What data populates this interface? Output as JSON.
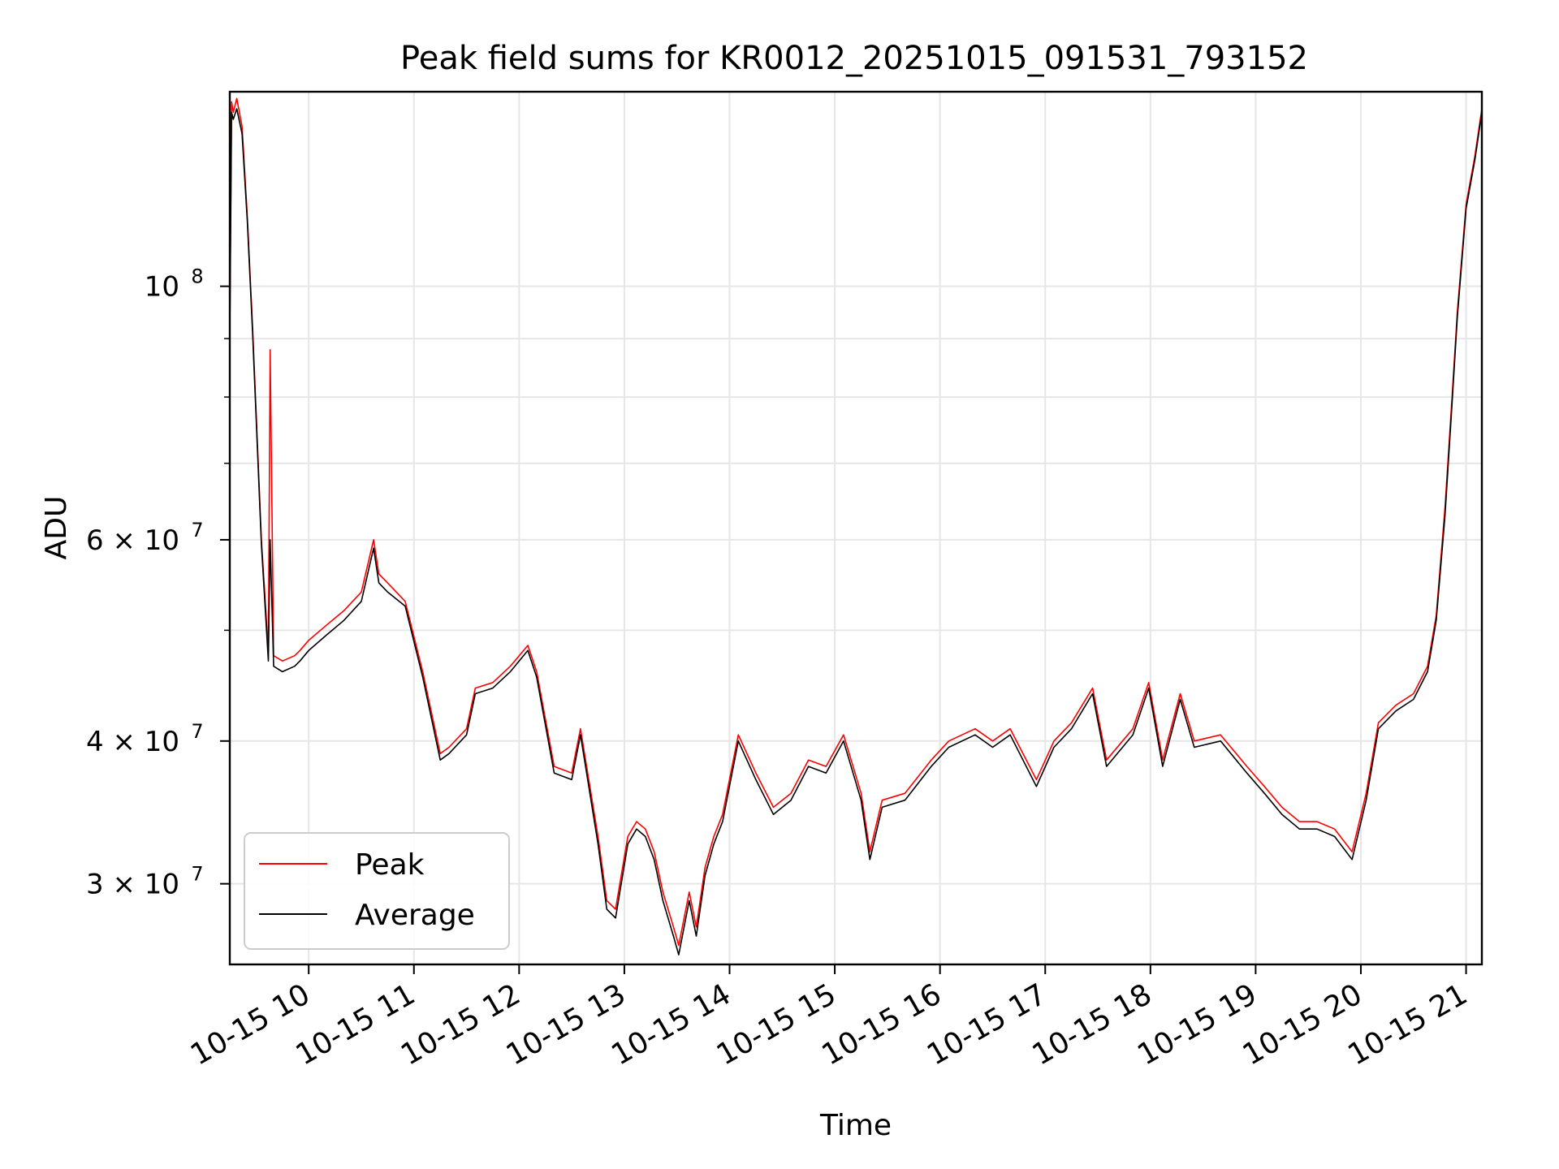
{
  "chart_data": {
    "type": "line",
    "title": "Peak field sums for KR0012_20251015_091531_793152",
    "xlabel": "Time",
    "ylabel": "ADU",
    "yscale": "log",
    "ylim": [
      25500000,
      148000000
    ],
    "xlim": [
      "2025-10-15 09:15",
      "2025-10-15 21:09"
    ],
    "grid": true,
    "legend": "lower-left",
    "x_ticks": [
      {
        "x": "2025-10-15 10:00",
        "label": "10-15 10"
      },
      {
        "x": "2025-10-15 11:00",
        "label": "10-15 11"
      },
      {
        "x": "2025-10-15 12:00",
        "label": "10-15 12"
      },
      {
        "x": "2025-10-15 13:00",
        "label": "10-15 13"
      },
      {
        "x": "2025-10-15 14:00",
        "label": "10-15 14"
      },
      {
        "x": "2025-10-15 15:00",
        "label": "10-15 15"
      },
      {
        "x": "2025-10-15 16:00",
        "label": "10-15 16"
      },
      {
        "x": "2025-10-15 17:00",
        "label": "10-15 17"
      },
      {
        "x": "2025-10-15 18:00",
        "label": "10-15 18"
      },
      {
        "x": "2025-10-15 19:00",
        "label": "10-15 19"
      },
      {
        "x": "2025-10-15 20:00",
        "label": "10-15 20"
      },
      {
        "x": "2025-10-15 21:00",
        "label": "10-15 21"
      }
    ],
    "y_major_ticks": [
      {
        "value": 100000000,
        "base": "10",
        "exp": "8"
      },
      {
        "value": 60000000,
        "base": "6 × 10",
        "exp": "7"
      },
      {
        "value": 40000000,
        "base": "4 × 10",
        "exp": "7"
      },
      {
        "value": 30000000,
        "base": "3 × 10",
        "exp": "7"
      }
    ],
    "y_minor_ticks": [
      90000000,
      80000000,
      70000000,
      50000000
    ],
    "series": [
      {
        "name": "Peak",
        "color": "#ff0000"
      },
      {
        "name": "Average",
        "color": "#000000"
      }
    ],
    "x": [
      "2025-10-15 09:15",
      "2025-10-15 09:16",
      "2025-10-15 09:17",
      "2025-10-15 09:19",
      "2025-10-15 09:22",
      "2025-10-15 09:25",
      "2025-10-15 09:28",
      "2025-10-15 09:33",
      "2025-10-15 09:37",
      "2025-10-15 09:38",
      "2025-10-15 09:40",
      "2025-10-15 09:45",
      "2025-10-15 09:52",
      "2025-10-15 09:55",
      "2025-10-15 10:00",
      "2025-10-15 10:10",
      "2025-10-15 10:20",
      "2025-10-15 10:30",
      "2025-10-15 10:37",
      "2025-10-15 10:40",
      "2025-10-15 10:45",
      "2025-10-15 10:55",
      "2025-10-15 11:05",
      "2025-10-15 11:15",
      "2025-10-15 11:20",
      "2025-10-15 11:30",
      "2025-10-15 11:35",
      "2025-10-15 11:45",
      "2025-10-15 11:55",
      "2025-10-15 12:05",
      "2025-10-15 12:10",
      "2025-10-15 12:20",
      "2025-10-15 12:30",
      "2025-10-15 12:35",
      "2025-10-15 12:45",
      "2025-10-15 12:50",
      "2025-10-15 12:55",
      "2025-10-15 13:02",
      "2025-10-15 13:07",
      "2025-10-15 13:12",
      "2025-10-15 13:17",
      "2025-10-15 13:22",
      "2025-10-15 13:28",
      "2025-10-15 13:31",
      "2025-10-15 13:37",
      "2025-10-15 13:41",
      "2025-10-15 13:46",
      "2025-10-15 13:51",
      "2025-10-15 13:56",
      "2025-10-15 14:05",
      "2025-10-15 14:15",
      "2025-10-15 14:25",
      "2025-10-15 14:35",
      "2025-10-15 14:45",
      "2025-10-15 14:55",
      "2025-10-15 15:05",
      "2025-10-15 15:15",
      "2025-10-15 15:20",
      "2025-10-15 15:27",
      "2025-10-15 15:40",
      "2025-10-15 15:55",
      "2025-10-15 16:05",
      "2025-10-15 16:20",
      "2025-10-15 16:30",
      "2025-10-15 16:40",
      "2025-10-15 16:55",
      "2025-10-15 17:05",
      "2025-10-15 17:15",
      "2025-10-15 17:27",
      "2025-10-15 17:35",
      "2025-10-15 17:50",
      "2025-10-15 17:59",
      "2025-10-15 18:07",
      "2025-10-15 18:17",
      "2025-10-15 18:25",
      "2025-10-15 18:40",
      "2025-10-15 18:55",
      "2025-10-15 19:05",
      "2025-10-15 19:15",
      "2025-10-15 19:25",
      "2025-10-15 19:35",
      "2025-10-15 19:45",
      "2025-10-15 19:55",
      "2025-10-15 20:03",
      "2025-10-15 20:10",
      "2025-10-15 20:20",
      "2025-10-15 20:30",
      "2025-10-15 20:38",
      "2025-10-15 20:43",
      "2025-10-15 20:48",
      "2025-10-15 20:52",
      "2025-10-15 20:55",
      "2025-10-15 21:00",
      "2025-10-15 21:05",
      "2025-10-15 21:09"
    ],
    "peak": [
      92000000,
      145000000,
      142000000,
      146000000,
      138000000,
      115000000,
      92000000,
      60000000,
      48000000,
      88000000,
      47500000,
      47000000,
      47500000,
      48000000,
      49000000,
      50500000,
      52000000,
      54000000,
      60000000,
      56000000,
      55000000,
      53000000,
      46000000,
      39000000,
      39500000,
      41000000,
      44500000,
      45000000,
      46500000,
      48500000,
      46000000,
      38000000,
      37500000,
      41000000,
      33000000,
      29000000,
      28500000,
      33000000,
      34000000,
      33500000,
      32000000,
      29500000,
      27500000,
      26500000,
      29500000,
      27500000,
      31000000,
      33000000,
      34500000,
      40500000,
      37500000,
      35000000,
      36000000,
      38500000,
      38000000,
      40500000,
      36000000,
      32000000,
      35500000,
      36000000,
      38500000,
      40000000,
      41000000,
      40000000,
      41000000,
      37000000,
      40000000,
      41500000,
      44500000,
      38500000,
      41000000,
      45000000,
      38500000,
      44000000,
      40000000,
      40500000,
      38000000,
      36500000,
      35000000,
      34000000,
      34000000,
      33500000,
      32000000,
      36000000,
      41500000,
      43000000,
      44000000,
      46500000,
      51500000,
      64000000,
      80000000,
      95000000,
      118000000,
      130000000,
      143000000
    ],
    "average": [
      90000000,
      142000000,
      140000000,
      143000000,
      136000000,
      114000000,
      91000000,
      59500000,
      47000000,
      60000000,
      46500000,
      46000000,
      46500000,
      47000000,
      48000000,
      49500000,
      51000000,
      53000000,
      59000000,
      55000000,
      54000000,
      52500000,
      45500000,
      38500000,
      39000000,
      40500000,
      44000000,
      44500000,
      46000000,
      48000000,
      45500000,
      37500000,
      37000000,
      40500000,
      32500000,
      28500000,
      28000000,
      32500000,
      33500000,
      33000000,
      31500000,
      29000000,
      27000000,
      26000000,
      29000000,
      27000000,
      30500000,
      32500000,
      34000000,
      40000000,
      37000000,
      34500000,
      35500000,
      38000000,
      37500000,
      40000000,
      35500000,
      31500000,
      35000000,
      35500000,
      38000000,
      39500000,
      40500000,
      39500000,
      40500000,
      36500000,
      39500000,
      41000000,
      44000000,
      38000000,
      40500000,
      44500000,
      38000000,
      43500000,
      39500000,
      40000000,
      37500000,
      36000000,
      34500000,
      33500000,
      33500000,
      33000000,
      31500000,
      35500000,
      41000000,
      42500000,
      43500000,
      46000000,
      51000000,
      63000000,
      79000000,
      94000000,
      117000000,
      129000000,
      142000000
    ]
  }
}
